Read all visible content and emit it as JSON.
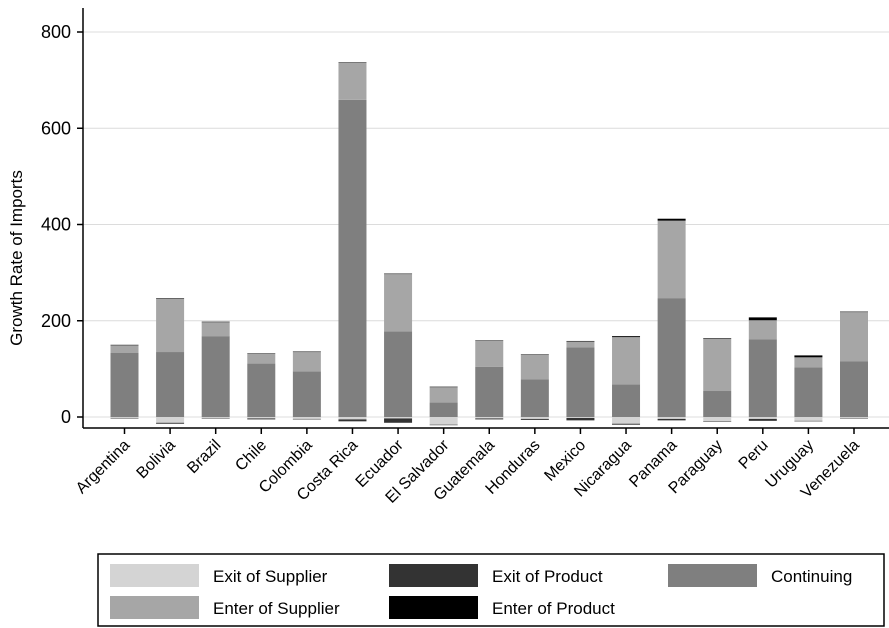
{
  "chart_data": {
    "type": "bar",
    "stacked": true,
    "title": "",
    "xlabel": "",
    "ylabel": "Growth Rate of Imports",
    "ylim": [
      -30,
      830
    ],
    "yticks": [
      0,
      200,
      400,
      600,
      800
    ],
    "grid": true,
    "legend_position": "bottom",
    "categories": [
      "Argentina",
      "Bolivia",
      "Brazil",
      "Chile",
      "Colombia",
      "Costa Rica",
      "Ecuador",
      "El Salvador",
      "Guatemala",
      "Honduras",
      "Mexico",
      "Nicaragua",
      "Panama",
      "Paraguay",
      "Peru",
      "Uruguay",
      "Venezuela"
    ],
    "series": [
      {
        "name": "Exit of Supplier",
        "color": "#d4d4d4",
        "values": [
          -2,
          -12,
          -2,
          -3,
          -4,
          -5,
          -3,
          -16,
          -3,
          -4,
          -2,
          -14,
          -4,
          -9,
          -4,
          -8,
          -2
        ]
      },
      {
        "name": "Exit of Product",
        "color": "#333333",
        "values": [
          -1,
          -2,
          -1,
          -2,
          -1,
          -4,
          -9,
          -1,
          -2,
          -2,
          -5,
          -2,
          -3,
          -1,
          -4,
          -1,
          -1
        ]
      },
      {
        "name": "Continuing",
        "color": "#7f7f7f",
        "values": [
          133,
          135,
          168,
          111,
          95,
          659,
          178,
          30,
          104,
          78,
          145,
          68,
          247,
          54,
          161,
          103,
          116
        ]
      },
      {
        "name": "Enter of Supplier",
        "color": "#a6a6a6",
        "values": [
          16,
          111,
          29,
          20,
          40,
          77,
          119,
          32,
          54,
          51,
          12,
          98,
          161,
          109,
          40,
          21,
          102
        ]
      },
      {
        "name": "Enter of Product",
        "color": "#000000",
        "values": [
          1,
          1,
          1,
          1,
          1,
          1,
          1,
          1,
          1,
          1,
          1,
          2,
          4,
          1,
          6,
          4,
          1
        ]
      }
    ],
    "legend": [
      {
        "label": "Exit of Supplier",
        "color": "#d4d4d4"
      },
      {
        "label": "Exit of Product",
        "color": "#333333"
      },
      {
        "label": "Continuing",
        "color": "#7f7f7f"
      },
      {
        "label": "Enter of Supplier",
        "color": "#a6a6a6"
      },
      {
        "label": "Enter of Product",
        "color": "#000000"
      }
    ]
  }
}
